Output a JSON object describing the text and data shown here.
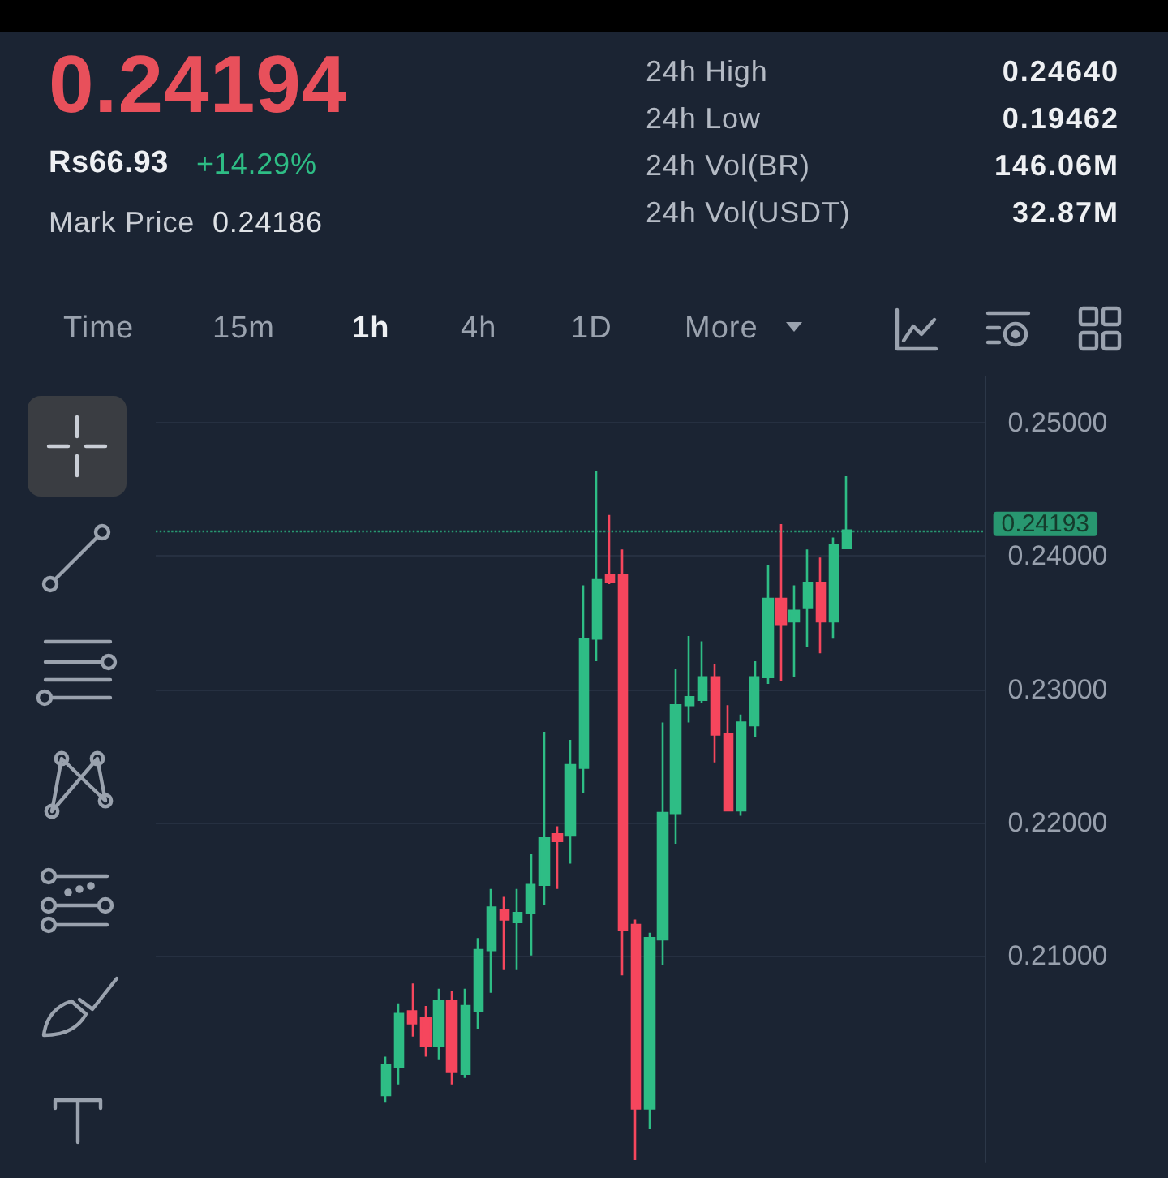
{
  "chart_data": {
    "type": "candlestick",
    "categories": [
      null,
      null,
      null,
      null,
      null,
      null,
      null,
      null,
      null,
      null,
      null,
      null,
      null,
      null,
      null,
      null,
      null,
      null,
      null,
      null,
      null,
      null,
      null,
      null,
      null,
      null,
      null,
      null,
      null,
      null,
      null,
      null,
      null,
      null,
      null,
      null,
      null,
      null,
      null,
      null,
      null,
      null,
      null,
      null,
      null,
      null,
      null,
      null,
      null,
      null,
      null,
      null,
      null,
      null,
      null,
      null,
      null,
      null,
      null,
      null,
      null,
      null,
      null
    ],
    "ohlc": [
      null,
      null,
      null,
      null,
      null,
      null,
      null,
      null,
      null,
      null,
      null,
      null,
      null,
      null,
      null,
      null,
      null,
      [
        0.1995,
        0.2024,
        0.199,
        0.2018
      ],
      [
        0.2016,
        0.2064,
        0.2003,
        0.2056
      ],
      [
        0.2058,
        0.2079,
        0.2039,
        0.2049
      ],
      [
        0.2053,
        0.2062,
        0.2024,
        0.2032
      ],
      [
        0.2032,
        0.2075,
        0.2022,
        0.2066
      ],
      [
        0.2066,
        0.2073,
        0.2003,
        0.2013
      ],
      [
        0.2011,
        0.2075,
        0.2008,
        0.2062
      ],
      [
        0.2058,
        0.2113,
        0.2045,
        0.2104
      ],
      [
        0.2104,
        0.215,
        0.2072,
        0.2136
      ],
      [
        0.2134,
        0.2144,
        0.2089,
        0.2127
      ],
      [
        0.2125,
        0.215,
        0.2089,
        0.2132
      ],
      [
        0.2132,
        0.2176,
        0.21,
        0.2153
      ],
      [
        0.2153,
        0.2268,
        0.2138,
        0.2188
      ],
      [
        0.2191,
        0.2197,
        0.215,
        0.2186
      ],
      [
        0.219,
        0.2262,
        0.2169,
        0.2243
      ],
      [
        0.2241,
        0.2378,
        0.2222,
        0.2338
      ],
      [
        0.2338,
        0.2464,
        0.2321,
        0.2382
      ],
      [
        0.2386,
        0.2431,
        0.2379,
        0.2381
      ],
      [
        0.2386,
        0.2405,
        0.2085,
        0.2119
      ],
      [
        0.2123,
        0.2127,
        0.19462,
        0.1985
      ],
      [
        0.1985,
        0.2117,
        0.197,
        0.2113
      ],
      [
        0.2112,
        0.2275,
        0.2093,
        0.2207
      ],
      [
        0.2207,
        0.2315,
        0.2184,
        0.2288
      ],
      [
        0.2288,
        0.234,
        0.2275,
        0.2294
      ],
      [
        0.2292,
        0.2336,
        0.229,
        0.2309
      ],
      [
        0.2309,
        0.2319,
        0.2245,
        0.2266
      ],
      [
        0.2266,
        0.2288,
        0.2209,
        0.2209
      ],
      [
        0.2209,
        0.2281,
        0.2205,
        0.2275
      ],
      [
        0.2273,
        0.2321,
        0.2264,
        0.2309
      ],
      [
        0.2309,
        0.2393,
        0.2304,
        0.2368
      ],
      [
        0.2368,
        0.2424,
        0.2306,
        0.2349
      ],
      [
        0.2351,
        0.2378,
        0.2309,
        0.2359
      ],
      [
        0.2361,
        0.2405,
        0.2332,
        0.238
      ],
      [
        0.238,
        0.2399,
        0.2327,
        0.2351
      ],
      [
        0.2351,
        0.2414,
        0.2338,
        0.2408
      ],
      [
        0.2406,
        0.246,
        0.2406,
        0.24193
      ],
      null,
      null,
      null,
      null,
      null,
      null,
      null,
      null,
      null,
      null
    ],
    "colors": [
      null,
      null,
      null,
      null,
      null,
      null,
      null,
      null,
      null,
      null,
      null,
      null,
      null,
      null,
      null,
      null,
      null,
      "#2ebd85",
      "#2ebd85",
      "#f6465d",
      "#f6465d",
      "#2ebd85",
      "#f6465d",
      "#2ebd85",
      "#2ebd85",
      "#2ebd85",
      "#f6465d",
      "#2ebd85",
      "#2ebd85",
      "#2ebd85",
      "#f6465d",
      "#2ebd85",
      "#2ebd85",
      "#2ebd85",
      "#f6465d",
      "#f6465d",
      "#f6465d",
      "#2ebd85",
      "#2ebd85",
      "#2ebd85",
      "#2ebd85",
      "#2ebd85",
      "#f6465d",
      "#f6465d",
      "#2ebd85",
      "#2ebd85",
      "#2ebd85",
      "#f6465d",
      "#2ebd85",
      "#2ebd85",
      "#f6465d",
      "#2ebd85",
      "#2ebd85",
      null,
      null,
      null,
      null,
      null,
      null,
      null,
      null,
      null,
      null
    ],
    "ylim": [
      0.1945,
      0.2535
    ],
    "yticks": [
      {
        "value": 0.21,
        "label": "0.21000"
      },
      {
        "value": 0.22,
        "label": "0.22000"
      },
      {
        "value": 0.23,
        "label": "0.23000"
      },
      {
        "value": 0.24,
        "label": "0.24000"
      },
      {
        "value": 0.25,
        "label": "0.25000"
      }
    ],
    "grid": "y",
    "tick_labels": "y",
    "ref_lines": [
      {
        "axis": "y",
        "value": 0.24193,
        "label": "0.24193",
        "color": "#2ebd85",
        "line_style": "dotted"
      }
    ],
    "annotations": [
      "0.24194",
      "Rs66.93",
      "+14.29%",
      "Mark Price",
      "0.24186",
      "24h High",
      "0.24640",
      "24h Low",
      "0.19462",
      "24h Vol(BR)",
      "146.06M",
      "24h Vol(USDT)",
      "32.87M",
      "Time",
      "15m",
      "1h",
      "4h",
      "1D",
      "More"
    ]
  }
}
